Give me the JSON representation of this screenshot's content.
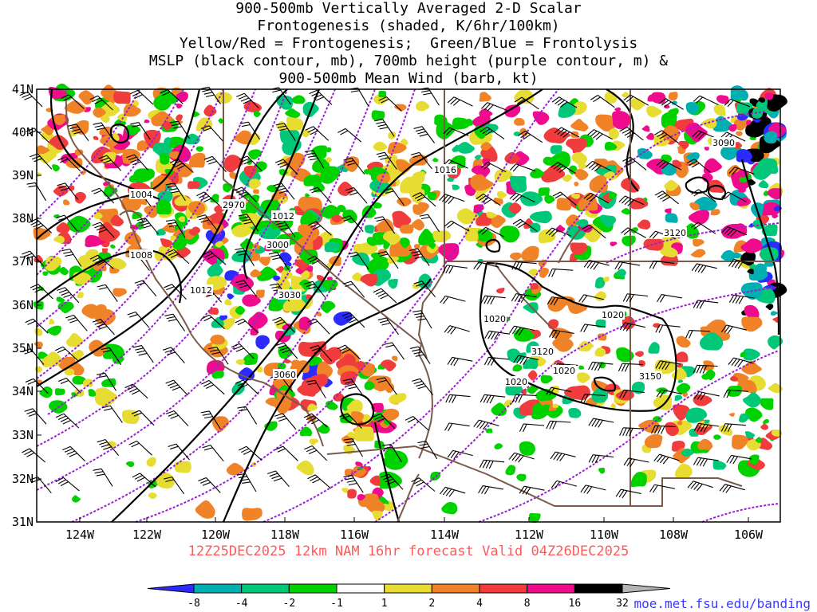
{
  "title_lines": [
    "900-500mb Vertically Averaged 2-D Scalar",
    "Frontogenesis (shaded, K/6hr/100km)",
    "Yellow/Red = Frontogenesis;  Green/Blue = Frontolysis",
    "MSLP (black contour, mb), 700mb height (purple contour, m) &",
    "900-500mb Mean Wind (barb, kt)"
  ],
  "forecast_line": "12Z25DEC2025 12km NAM 16hr forecast Valid 04Z26DEC2025",
  "credit": "moe.met.fsu.edu/banding",
  "axes": {
    "lon_labels": [
      "124W",
      "122W",
      "120W",
      "118W",
      "116W",
      "114W",
      "112W",
      "110W",
      "108W",
      "106W"
    ],
    "lat_labels": [
      "41N",
      "40N",
      "39N",
      "38N",
      "37N",
      "36N",
      "35N",
      "34N",
      "33N",
      "32N",
      "31N"
    ]
  },
  "colorbar": {
    "labels": [
      "-8",
      "-4",
      "-2",
      "-1",
      "1",
      "2",
      "4",
      "8",
      "16",
      "32"
    ],
    "colors": [
      "#2b2bff",
      "#00b0b0",
      "#00c878",
      "#00d200",
      "#ffffff",
      "#e6dc32",
      "#f08228",
      "#f03c3c",
      "#f00a8c",
      "#000000",
      "#b4b4b4"
    ]
  },
  "mslp_labels": [
    "1004",
    "1008",
    "1012",
    "1012",
    "1016",
    "1020",
    "1020",
    "1020",
    "1020"
  ],
  "height_labels": [
    "2970",
    "3000",
    "3030",
    "3060",
    "3090",
    "3120",
    "3120",
    "3150"
  ],
  "colors": {
    "mslp": "#000000",
    "height": "#9b1fd6",
    "border": "#7a5a4a",
    "frame": "#000000"
  }
}
